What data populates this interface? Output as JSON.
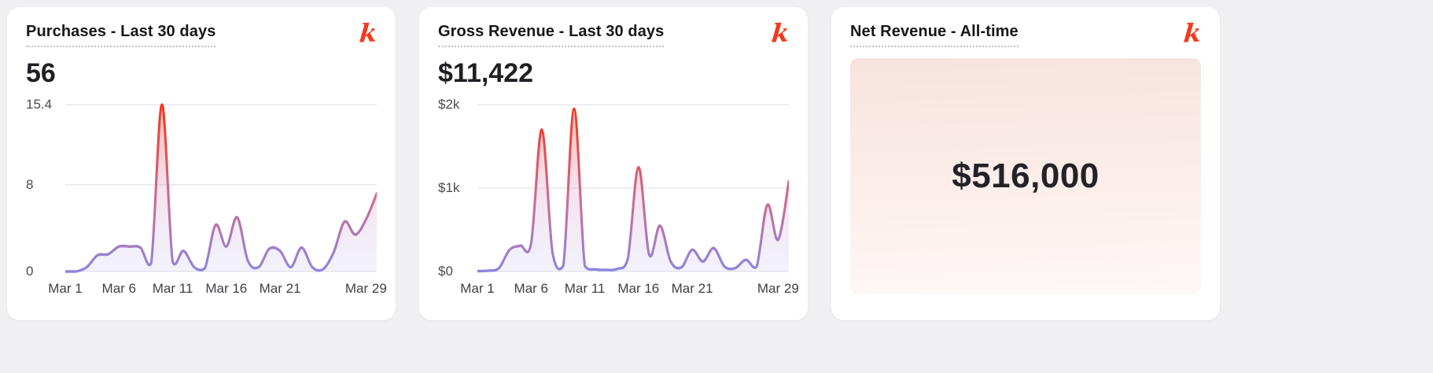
{
  "brand": {
    "logo_glyph": "k"
  },
  "colors": {
    "background": "#f0f0f2",
    "card": "#ffffff",
    "title": "#17171a",
    "value": "#202024",
    "axis_label": "#47474f",
    "grid": "#e8e8ec",
    "logo_red": "#f23a1c",
    "line_top": "#f5310f",
    "line_mid": "#d1688e",
    "line_bottom": "#8a87e2",
    "fill_top": "rgba(245,60,25,0.40)",
    "fill_mid": "rgba(210,110,160,0.20)",
    "fill_bottom": "rgba(138,135,226,0.10)",
    "net_panel_top": "#f8e3de",
    "net_panel_bottom": "#fdf8f6"
  },
  "cards": [
    {
      "title": "Purchases - Last 30 days",
      "value": "56"
    },
    {
      "title": "Gross Revenue - Last 30 days",
      "value": "$11,422"
    },
    {
      "title": "Net Revenue - All-time",
      "value": "$516,000"
    }
  ],
  "chart_data": [
    {
      "type": "area",
      "title": "Purchases - Last 30 days",
      "summary_value": 56,
      "x": [
        "Mar 1",
        "Mar 2",
        "Mar 3",
        "Mar 4",
        "Mar 5",
        "Mar 6",
        "Mar 7",
        "Mar 8",
        "Mar 9",
        "Mar 10",
        "Mar 11",
        "Mar 12",
        "Mar 13",
        "Mar 14",
        "Mar 15",
        "Mar 16",
        "Mar 17",
        "Mar 18",
        "Mar 19",
        "Mar 20",
        "Mar 21",
        "Mar 22",
        "Mar 23",
        "Mar 24",
        "Mar 25",
        "Mar 26",
        "Mar 27",
        "Mar 28",
        "Mar 29",
        "Mar 30"
      ],
      "values": [
        0,
        0,
        0.4,
        1.5,
        1.6,
        2.3,
        2.3,
        2.2,
        0.8,
        15.4,
        0.9,
        1.9,
        0.4,
        0.3,
        4.3,
        2.3,
        5.0,
        1.0,
        0.4,
        2.1,
        1.9,
        0.4,
        2.2,
        0.4,
        0.2,
        1.8,
        4.6,
        3.4,
        4.8,
        7.2
      ],
      "ylim": [
        0,
        15.4
      ],
      "yticks": [
        {
          "label": "15.4",
          "value": 15.4
        },
        {
          "label": "8",
          "value": 8
        },
        {
          "label": "0",
          "value": 0
        }
      ],
      "xticks": [
        {
          "label": "Mar 1",
          "day": 0
        },
        {
          "label": "Mar 6",
          "day": 5
        },
        {
          "label": "Mar 11",
          "day": 10
        },
        {
          "label": "Mar 16",
          "day": 15
        },
        {
          "label": "Mar 21",
          "day": 20
        },
        {
          "label": "Mar 29",
          "day": 28
        }
      ],
      "grid": true,
      "legend": false
    },
    {
      "type": "area",
      "title": "Gross Revenue - Last 30 days",
      "summary_value": 11422,
      "x": [
        "Mar 1",
        "Mar 2",
        "Mar 3",
        "Mar 4",
        "Mar 5",
        "Mar 6",
        "Mar 7",
        "Mar 8",
        "Mar 9",
        "Mar 10",
        "Mar 11",
        "Mar 12",
        "Mar 13",
        "Mar 14",
        "Mar 15",
        "Mar 16",
        "Mar 17",
        "Mar 18",
        "Mar 19",
        "Mar 20",
        "Mar 21",
        "Mar 22",
        "Mar 23",
        "Mar 24",
        "Mar 25",
        "Mar 26",
        "Mar 27",
        "Mar 28",
        "Mar 29",
        "Mar 30"
      ],
      "values": [
        5,
        10,
        40,
        260,
        310,
        340,
        1700,
        220,
        70,
        1950,
        70,
        25,
        20,
        30,
        150,
        1250,
        200,
        550,
        120,
        50,
        260,
        120,
        280,
        60,
        40,
        140,
        60,
        800,
        380,
        1080
      ],
      "ylim": [
        0,
        2000
      ],
      "yticks": [
        {
          "label": "$2k",
          "value": 2000
        },
        {
          "label": "$1k",
          "value": 1000
        },
        {
          "label": "$0",
          "value": 0
        }
      ],
      "xticks": [
        {
          "label": "Mar 1",
          "day": 0
        },
        {
          "label": "Mar 6",
          "day": 5
        },
        {
          "label": "Mar 11",
          "day": 10
        },
        {
          "label": "Mar 16",
          "day": 15
        },
        {
          "label": "Mar 21",
          "day": 20
        },
        {
          "label": "Mar 29",
          "day": 28
        }
      ],
      "grid": true,
      "legend": false
    }
  ]
}
